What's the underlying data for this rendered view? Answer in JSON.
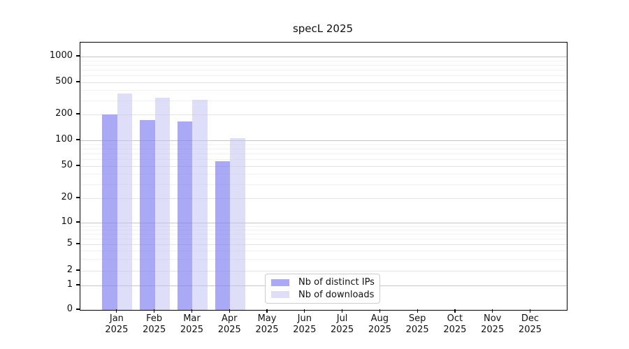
{
  "title": "specL 2025",
  "chart_data": {
    "type": "bar",
    "title": "specL 2025",
    "categories": [
      "Jan",
      "Feb",
      "Mar",
      "Apr",
      "May",
      "Jun",
      "Jul",
      "Aug",
      "Sep",
      "Oct",
      "Nov",
      "Dec"
    ],
    "category_year": "2025",
    "series": [
      {
        "name": "Nb of distinct IPs",
        "values": [
          200,
          172,
          166,
          57,
          0,
          0,
          0,
          0,
          0,
          0,
          0,
          0
        ],
        "fill": "rgba(125,125,240,0.66)",
        "legend_swatch": "#a9a9f5"
      },
      {
        "name": "Nb of downloads",
        "values": [
          362,
          320,
          303,
          106,
          0,
          0,
          0,
          0,
          0,
          0,
          0,
          0
        ],
        "fill": "rgba(195,195,244,0.55)",
        "legend_swatch": "#dedef9"
      }
    ],
    "xlabel": "",
    "ylabel": "",
    "yscale": "symlog",
    "yticks": [
      0,
      1,
      2,
      5,
      10,
      20,
      50,
      100,
      200,
      500,
      1000
    ],
    "ylim": [
      0,
      1400
    ],
    "grid": "horizontal major+minor",
    "legend_position": "inside bottom-center"
  }
}
